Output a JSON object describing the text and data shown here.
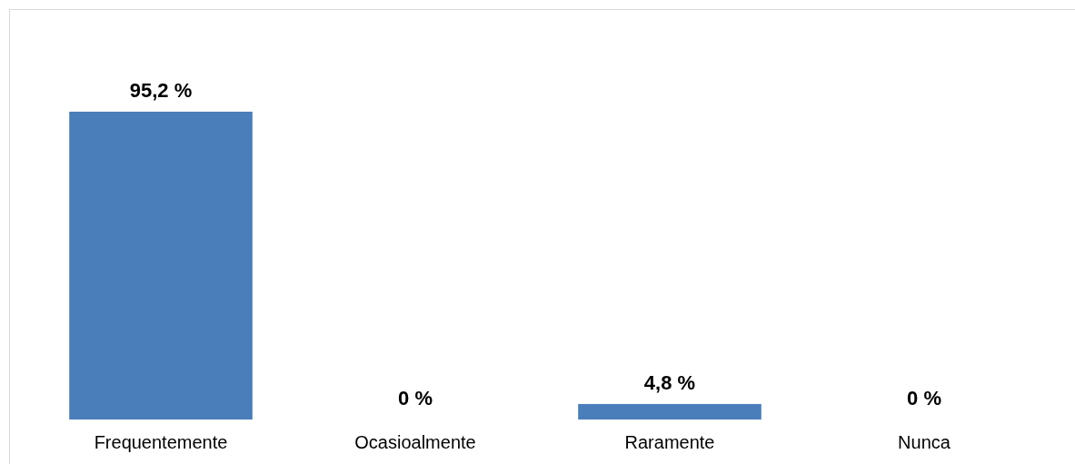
{
  "chart_data": {
    "type": "bar",
    "categories": [
      "Frequentemente",
      "Ocasioalmente",
      "Raramente",
      "Nunca"
    ],
    "values": [
      95.2,
      0,
      4.8,
      0
    ],
    "value_labels": [
      "95,2 %",
      "0 %",
      "4,8 %",
      "0 %"
    ],
    "color": "#4a7ebb"
  }
}
